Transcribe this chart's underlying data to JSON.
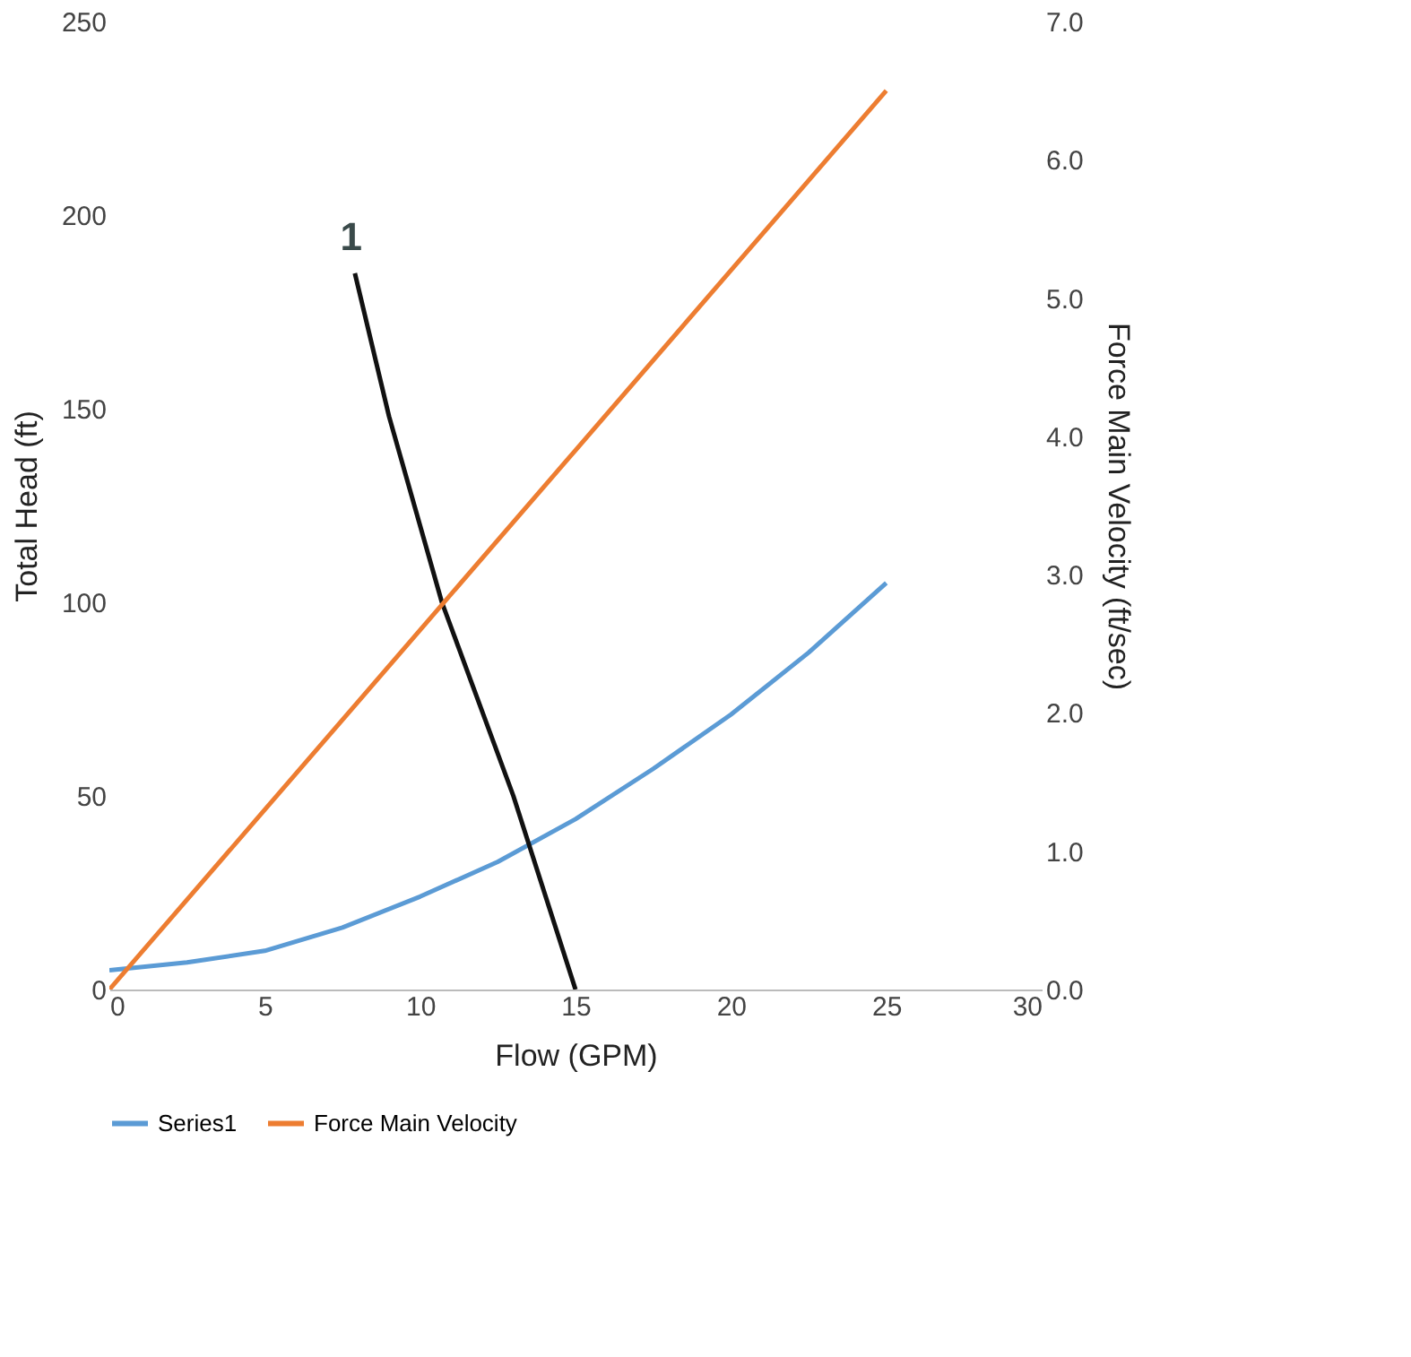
{
  "chart_data": {
    "type": "line",
    "xlabel": "Flow (GPM)",
    "ylabel": "Total Head (ft)",
    "y2label": "Force Main Velocity (ft/sec)",
    "xlim": [
      0,
      30
    ],
    "xticks": [
      0,
      5,
      10,
      15,
      20,
      25,
      30
    ],
    "ylim": [
      0,
      250
    ],
    "yticks": [
      0,
      50,
      100,
      150,
      200,
      250
    ],
    "y2lim": [
      0,
      7
    ],
    "y2ticks": [
      {
        "value": 0,
        "label": "0.0"
      },
      {
        "value": 1,
        "label": "1.0"
      },
      {
        "value": 2,
        "label": "2.0"
      },
      {
        "value": 3,
        "label": "3.0"
      },
      {
        "value": 4,
        "label": "4.0"
      },
      {
        "value": 5,
        "label": "5.0"
      },
      {
        "value": 6,
        "label": "6.0"
      },
      {
        "value": 7,
        "label": "7.0"
      }
    ],
    "grid": false,
    "legend": "bottom",
    "marker": "none",
    "line_style": "solid",
    "annotations": [
      "1"
    ],
    "series": [
      {
        "name": "Series1",
        "color": "#5b9bd5",
        "x": [
          0,
          2.5,
          5,
          7.5,
          10,
          12.5,
          15,
          17.5,
          20,
          22.5,
          25
        ],
        "values": [
          5,
          7,
          10,
          16,
          24,
          33,
          44,
          57,
          71,
          87,
          105
        ]
      },
      {
        "color": "#111111",
        "x": [
          7.9,
          9,
          10.7,
          13,
          15
        ],
        "values": [
          185,
          148,
          100,
          50,
          0
        ]
      },
      {
        "name": "Force Main Velocity",
        "color": "#ed7d31",
        "axis": "y2",
        "x": [
          0,
          5,
          10,
          15,
          20,
          25
        ],
        "values": [
          0,
          1.3,
          2.6,
          3.9,
          5.2,
          6.5
        ]
      }
    ]
  }
}
